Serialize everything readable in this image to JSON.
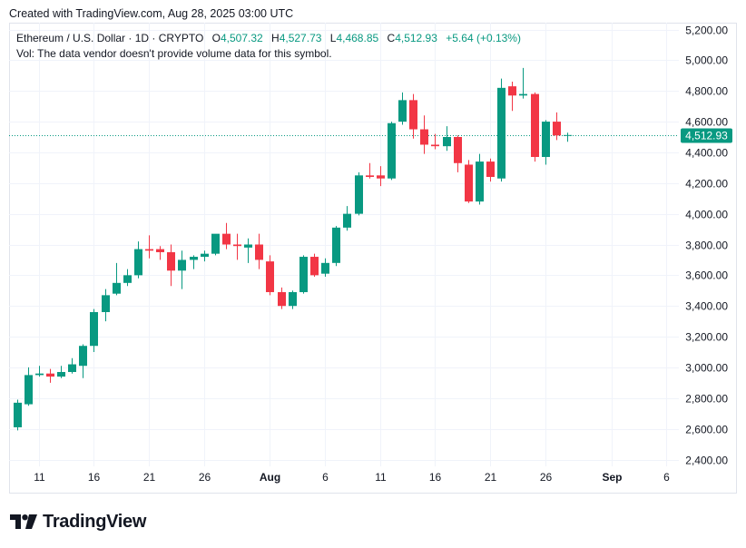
{
  "header": {
    "created": "Created with TradingView.com, Aug 28, 2025 03:00 UTC"
  },
  "legend": {
    "symbol": "Ethereum / U.S. Dollar · 1D · CRYPTO",
    "o_label": "O",
    "o_value": "4,507.32",
    "h_label": "H",
    "h_value": "4,527.73",
    "l_label": "L",
    "l_value": "4,468.85",
    "c_label": "C",
    "c_value": "4,512.93",
    "change": "+5.64 (+0.13%)",
    "vol_note": "Vol: The data vendor doesn't provide volume data for this symbol."
  },
  "brand": {
    "name": "TradingView"
  },
  "colors": {
    "up": "#089981",
    "down": "#f23645",
    "grid": "#f0f3fa",
    "axis_text": "#131722",
    "last_price_bg": "#089981"
  },
  "chart_data": {
    "type": "candlestick",
    "title": "Ethereum / U.S. Dollar · 1D · CRYPTO",
    "interval": "1D",
    "ylim": [
      2350,
      5300
    ],
    "y_ticks": [
      "5,200.00",
      "5,000.00",
      "4,800.00",
      "4,600.00",
      "4,400.00",
      "4,200.00",
      "4,000.00",
      "3,800.00",
      "3,600.00",
      "3,400.00",
      "3,200.00",
      "3,000.00",
      "2,800.00",
      "2,600.00",
      "2,400.00"
    ],
    "y_tick_values": [
      5200,
      5000,
      4800,
      4600,
      4400,
      4200,
      4000,
      3800,
      3600,
      3400,
      3200,
      3000,
      2800,
      2600,
      2400
    ],
    "x_ticks": [
      {
        "label": "11",
        "index": 2
      },
      {
        "label": "16",
        "index": 7
      },
      {
        "label": "21",
        "index": 12
      },
      {
        "label": "26",
        "index": 17
      },
      {
        "label": "Aug",
        "index": 23
      },
      {
        "label": "6",
        "index": 28
      },
      {
        "label": "11",
        "index": 33
      },
      {
        "label": "16",
        "index": 38
      },
      {
        "label": "21",
        "index": 43
      },
      {
        "label": "26",
        "index": 48
      },
      {
        "label": "Sep",
        "index": 54
      },
      {
        "label": "6",
        "index": 59
      }
    ],
    "last_price": 4512.93,
    "last_price_label": "4,512.93",
    "candles": [
      {
        "o": 2610,
        "h": 2790,
        "l": 2590,
        "c": 2770
      },
      {
        "o": 2760,
        "h": 3000,
        "l": 2750,
        "c": 2950
      },
      {
        "o": 2950,
        "h": 3010,
        "l": 2940,
        "c": 2960
      },
      {
        "o": 2960,
        "h": 2990,
        "l": 2900,
        "c": 2940
      },
      {
        "o": 2940,
        "h": 3010,
        "l": 2930,
        "c": 2970
      },
      {
        "o": 2970,
        "h": 3060,
        "l": 2960,
        "c": 3020
      },
      {
        "o": 3010,
        "h": 3150,
        "l": 2930,
        "c": 3140
      },
      {
        "o": 3140,
        "h": 3380,
        "l": 3100,
        "c": 3360
      },
      {
        "o": 3360,
        "h": 3510,
        "l": 3300,
        "c": 3470
      },
      {
        "o": 3480,
        "h": 3680,
        "l": 3470,
        "c": 3550
      },
      {
        "o": 3550,
        "h": 3640,
        "l": 3530,
        "c": 3600
      },
      {
        "o": 3600,
        "h": 3820,
        "l": 3580,
        "c": 3770
      },
      {
        "o": 3770,
        "h": 3860,
        "l": 3710,
        "c": 3760
      },
      {
        "o": 3770,
        "h": 3790,
        "l": 3700,
        "c": 3750
      },
      {
        "o": 3750,
        "h": 3800,
        "l": 3530,
        "c": 3630
      },
      {
        "o": 3630,
        "h": 3760,
        "l": 3510,
        "c": 3700
      },
      {
        "o": 3700,
        "h": 3730,
        "l": 3640,
        "c": 3720
      },
      {
        "o": 3720,
        "h": 3760,
        "l": 3690,
        "c": 3740
      },
      {
        "o": 3740,
        "h": 3860,
        "l": 3730,
        "c": 3870
      },
      {
        "o": 3870,
        "h": 3940,
        "l": 3770,
        "c": 3800
      },
      {
        "o": 3800,
        "h": 3870,
        "l": 3700,
        "c": 3790
      },
      {
        "o": 3780,
        "h": 3840,
        "l": 3680,
        "c": 3800
      },
      {
        "o": 3800,
        "h": 3870,
        "l": 3640,
        "c": 3700
      },
      {
        "o": 3690,
        "h": 3730,
        "l": 3470,
        "c": 3490
      },
      {
        "o": 3490,
        "h": 3520,
        "l": 3380,
        "c": 3400
      },
      {
        "o": 3400,
        "h": 3500,
        "l": 3380,
        "c": 3490
      },
      {
        "o": 3490,
        "h": 3730,
        "l": 3480,
        "c": 3720
      },
      {
        "o": 3720,
        "h": 3740,
        "l": 3590,
        "c": 3600
      },
      {
        "o": 3610,
        "h": 3710,
        "l": 3590,
        "c": 3680
      },
      {
        "o": 3680,
        "h": 3920,
        "l": 3660,
        "c": 3910
      },
      {
        "o": 3910,
        "h": 4050,
        "l": 3890,
        "c": 4000
      },
      {
        "o": 4000,
        "h": 4270,
        "l": 3990,
        "c": 4250
      },
      {
        "o": 4250,
        "h": 4330,
        "l": 4230,
        "c": 4240
      },
      {
        "o": 4250,
        "h": 4310,
        "l": 4180,
        "c": 4230
      },
      {
        "o": 4230,
        "h": 4600,
        "l": 4220,
        "c": 4590
      },
      {
        "o": 4600,
        "h": 4790,
        "l": 4580,
        "c": 4740
      },
      {
        "o": 4740,
        "h": 4780,
        "l": 4490,
        "c": 4550
      },
      {
        "o": 4550,
        "h": 4640,
        "l": 4390,
        "c": 4450
      },
      {
        "o": 4450,
        "h": 4520,
        "l": 4420,
        "c": 4440
      },
      {
        "o": 4440,
        "h": 4570,
        "l": 4410,
        "c": 4500
      },
      {
        "o": 4500,
        "h": 4510,
        "l": 4270,
        "c": 4330
      },
      {
        "o": 4320,
        "h": 4350,
        "l": 4070,
        "c": 4080
      },
      {
        "o": 4080,
        "h": 4390,
        "l": 4060,
        "c": 4340
      },
      {
        "o": 4340,
        "h": 4360,
        "l": 4210,
        "c": 4240
      },
      {
        "o": 4230,
        "h": 4880,
        "l": 4210,
        "c": 4820
      },
      {
        "o": 4830,
        "h": 4860,
        "l": 4670,
        "c": 4770
      },
      {
        "o": 4770,
        "h": 4950,
        "l": 4750,
        "c": 4780
      },
      {
        "o": 4780,
        "h": 4790,
        "l": 4340,
        "c": 4370
      },
      {
        "o": 4370,
        "h": 4610,
        "l": 4320,
        "c": 4600
      },
      {
        "o": 4600,
        "h": 4660,
        "l": 4480,
        "c": 4510
      },
      {
        "o": 4507.32,
        "h": 4527.73,
        "l": 4468.85,
        "c": 4512.93
      }
    ]
  }
}
